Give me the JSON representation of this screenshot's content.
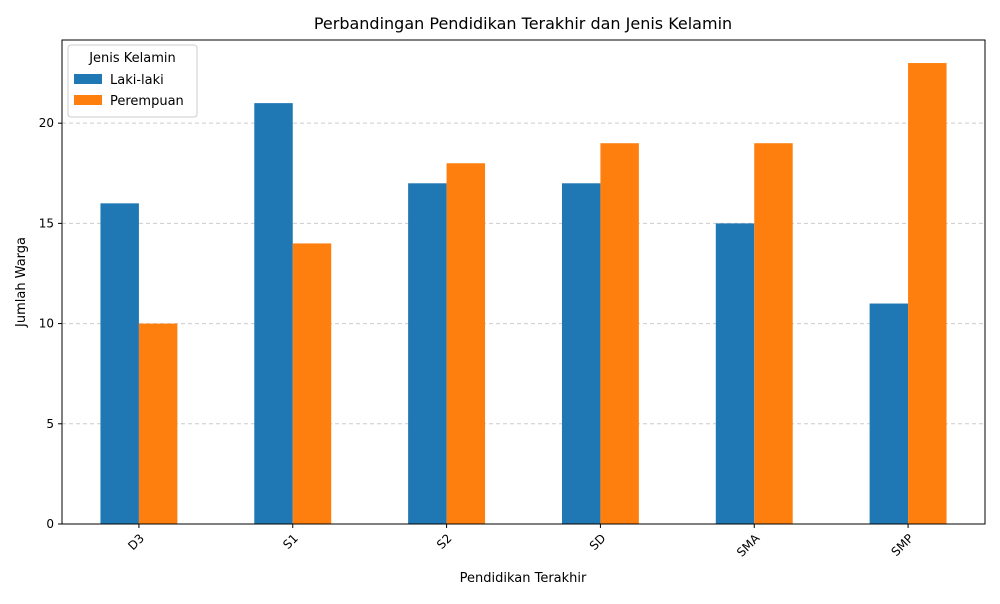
{
  "chart_data": {
    "type": "bar",
    "title": "Perbandingan Pendidikan Terakhir dan Jenis Kelamin",
    "xlabel": "Pendidikan Terakhir",
    "ylabel": "Jumlah Warga",
    "categories": [
      "D3",
      "S1",
      "S2",
      "SD",
      "SMA",
      "SMP"
    ],
    "series": [
      {
        "name": "Laki-laki",
        "color": "#1f77b4",
        "values": [
          16,
          21,
          17,
          17,
          15,
          11
        ]
      },
      {
        "name": "Perempuan",
        "color": "#ff7f0e",
        "values": [
          10,
          14,
          18,
          19,
          19,
          23
        ]
      }
    ],
    "ylim": [
      0,
      24.15
    ],
    "yticks": [
      0,
      5,
      10,
      15,
      20
    ],
    "grid": "y-dashed",
    "legend": {
      "title": "Jenis Kelamin",
      "position": "top-left"
    }
  }
}
